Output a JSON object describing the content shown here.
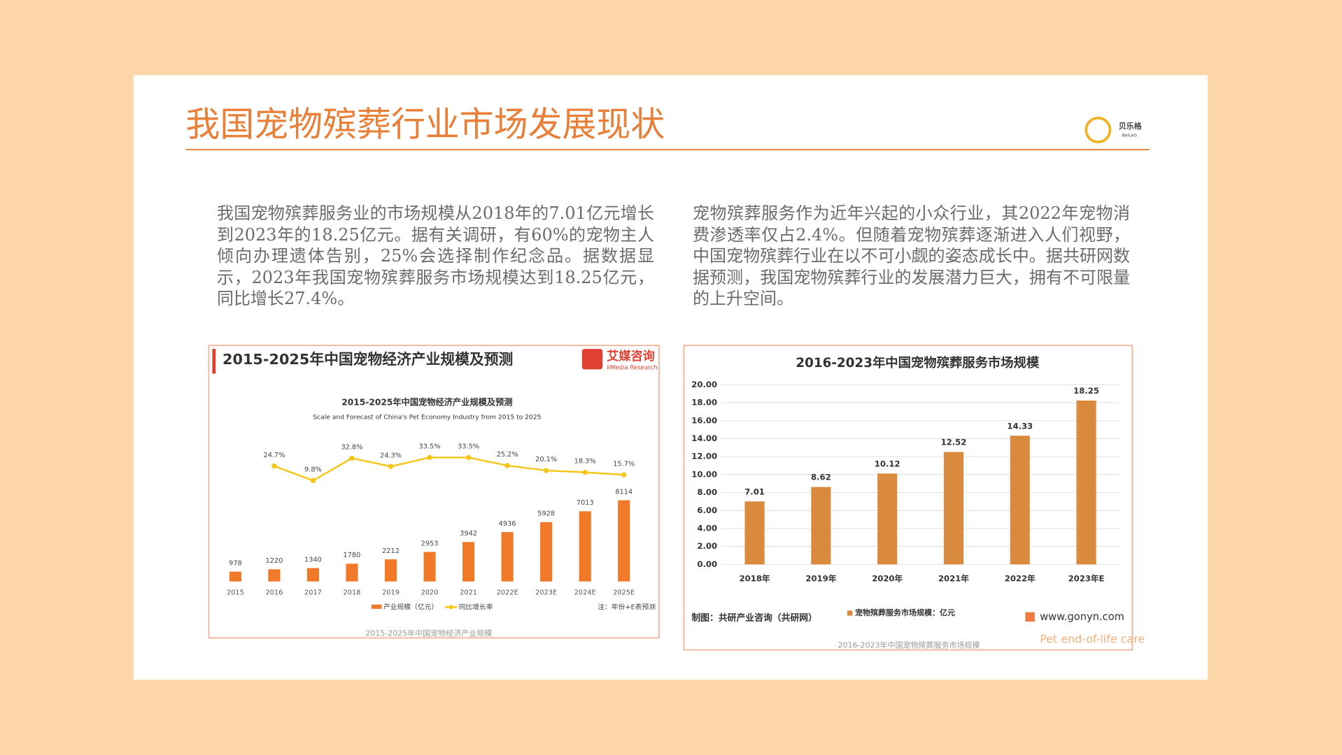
{
  "header": {
    "title": "我国宠物殡葬行业市场发展现状",
    "logo_cn": "贝乐格",
    "logo_en": "BeiLeG"
  },
  "paragraphs": [
    "我国宠物殡葬服务业的市场规模从2018年的7.01亿元增长到2023年的18.25亿元。据有关调研，有60%的宠物主人倾向办理遗体告别，25%会选择制作纪念品。据数据显示，2023年我国宠物殡葬服务市场规模达到18.25亿元，同比增长27.4%。",
    "宠物殡葬服务作为近年兴起的小众行业，其2022年宠物消费渗透率仅占2.4%。但随着宠物殡葬逐渐进入人们视野，中国宠物殡葬行业在以不可小觑的姿态成长中。据共研网数据预测，我国宠物殡葬行业的发展潜力巨大，拥有不可限量的上升空间。"
  ],
  "caption": "Pet end-of-life care",
  "chart_data": [
    {
      "type": "bar_line",
      "title": "2015-2025年中国宠物经济产业规模及预测",
      "source_logo": "艾媒咨询",
      "source_logo_en": "iiMedia Research",
      "inner_title": "2015-2025年中国宠物经济产业规模及预测",
      "subtitle": "Scale and Forecast of China's Pet Economy Industry from 2015 to 2025",
      "categories": [
        "2015",
        "2016",
        "2017",
        "2018",
        "2019",
        "2020",
        "2021",
        "2022E",
        "2023E",
        "2024E",
        "2025E"
      ],
      "series": [
        {
          "name": "产业规模（亿元）",
          "color": "#f07a2a",
          "values": [
            978,
            1220,
            1340,
            1780,
            2212,
            2953,
            3942,
            4936,
            5928,
            7013,
            8114
          ]
        },
        {
          "name": "同比增长率",
          "color": "#f5c518",
          "values": [
            null,
            24.7,
            9.8,
            32.8,
            24.3,
            33.5,
            33.5,
            25.2,
            20.1,
            18.3,
            15.7
          ],
          "value_labels": [
            null,
            "24.7%",
            "9.8%",
            "32.8%",
            "24.3%",
            "33.5%",
            "33.5%",
            "25.2%",
            "20.1%",
            "18.3%",
            "15.7%"
          ]
        }
      ],
      "note": "注：年份+E表预测",
      "caption": "2015-2025年中国宠物经济产业规模"
    },
    {
      "type": "bar",
      "title": "2016-2023年中国宠物殡葬服务市场规模",
      "categories": [
        "2018年",
        "2019年",
        "2020年",
        "2021年",
        "2022年",
        "2023年E"
      ],
      "series": [
        {
          "name": "宠物殡葬服务市场规模：亿元",
          "color": "#d98a3d",
          "values": [
            7.01,
            8.62,
            10.12,
            12.52,
            14.33,
            18.25
          ]
        }
      ],
      "ylim": [
        0,
        20
      ],
      "yticks": [
        {
          "value": 0,
          "label": "0.00"
        },
        {
          "value": 2,
          "label": "2.00"
        },
        {
          "value": 4,
          "label": "4.00"
        },
        {
          "value": 6,
          "label": "6.00"
        },
        {
          "value": 8,
          "label": "8.00"
        },
        {
          "value": 10,
          "label": "10.00"
        },
        {
          "value": 12,
          "label": "12.00"
        },
        {
          "value": 14,
          "label": "14.00"
        },
        {
          "value": 16,
          "label": "16.00"
        },
        {
          "value": 18,
          "label": "18.00"
        },
        {
          "value": 20,
          "label": "20.00"
        }
      ],
      "grid": true,
      "source": "制图：共研产业咨询（共研网）",
      "website": "www.gonyn.com",
      "caption": "2016-2023年中国宠物殡葬服务市场规模"
    }
  ]
}
